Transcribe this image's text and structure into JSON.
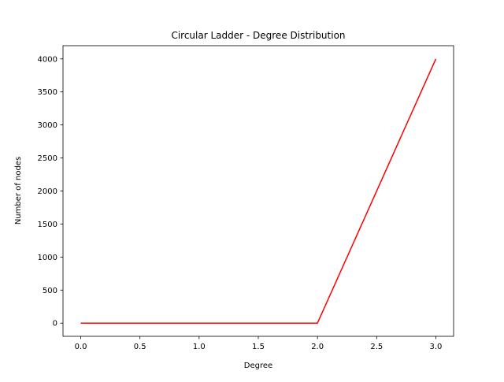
{
  "chart_data": {
    "type": "line",
    "title": "Circular Ladder - Degree Distribution",
    "xlabel": "Degree",
    "ylabel": "Number of nodes",
    "xlim": [
      -0.15,
      3.15
    ],
    "ylim": [
      -200,
      4200
    ],
    "xticks": [
      0.0,
      0.5,
      1.0,
      1.5,
      2.0,
      2.5,
      3.0
    ],
    "xtick_labels": [
      "0.0",
      "0.5",
      "1.0",
      "1.5",
      "2.0",
      "2.5",
      "3.0"
    ],
    "yticks": [
      0,
      500,
      1000,
      1500,
      2000,
      2500,
      3000,
      3500,
      4000
    ],
    "ytick_labels": [
      "0",
      "500",
      "1000",
      "1500",
      "2000",
      "2500",
      "3000",
      "3500",
      "4000"
    ],
    "grid": false,
    "series": [
      {
        "color": "#ff0000",
        "x": [
          0,
          1,
          2,
          3
        ],
        "y": [
          0,
          0,
          0,
          4000
        ]
      }
    ]
  }
}
